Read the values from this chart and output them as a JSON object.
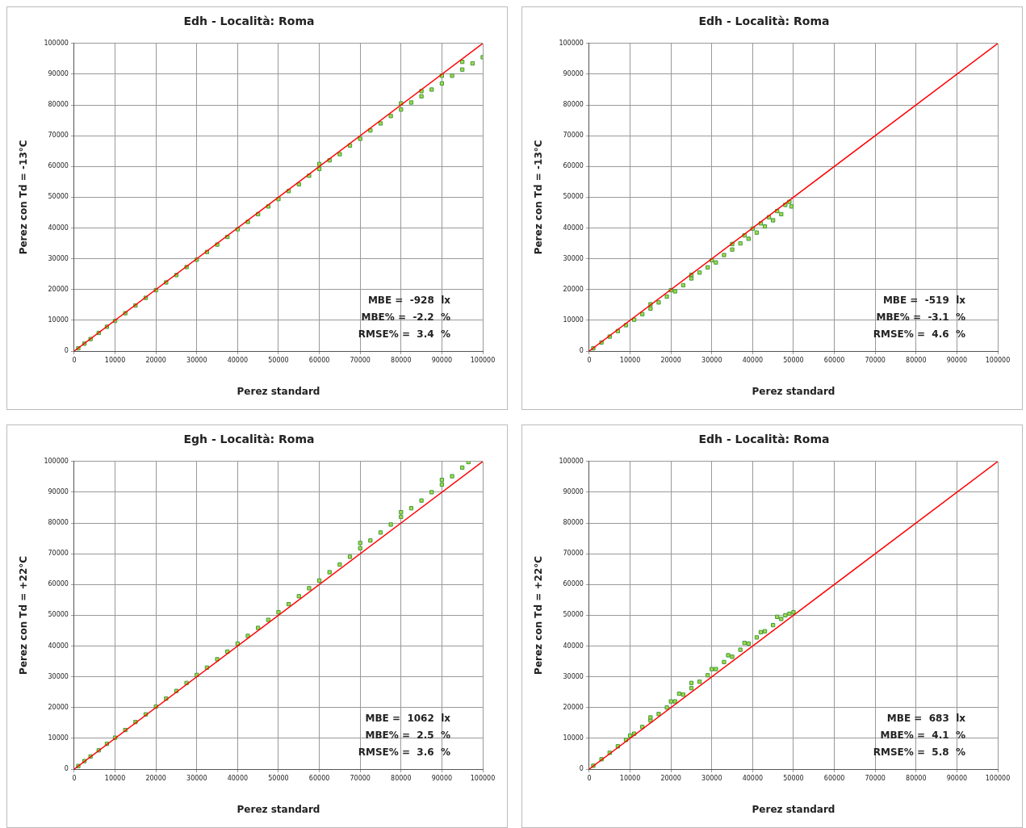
{
  "chart_data": [
    {
      "type": "scatter",
      "title": "Edh - Località: Roma",
      "xlabel": "Perez standard",
      "ylabel": "Perez con Td = -13°C",
      "xlim": [
        0,
        100000
      ],
      "ylim": [
        0,
        100000
      ],
      "xticks": [
        0,
        10000,
        20000,
        30000,
        40000,
        50000,
        60000,
        70000,
        80000,
        90000,
        100000
      ],
      "yticks": [
        0,
        10000,
        20000,
        30000,
        40000,
        50000,
        60000,
        70000,
        80000,
        90000,
        100000
      ],
      "grid": true,
      "legend": false,
      "marker": "square",
      "annotations": [
        "MBE =  -928  lx",
        "MBE% =  -2.2  %",
        "RMSE% =  3.4  %"
      ],
      "series": [
        {
          "color": "#a8d84a",
          "x": [
            1000,
            2500,
            4000,
            6000,
            8000,
            10000,
            12500,
            15000,
            17500,
            20000,
            22500,
            25000,
            27500,
            30000,
            32500,
            35000,
            37500,
            40000,
            42500,
            45000,
            47500,
            50000,
            52500,
            55000,
            57500,
            60000,
            62500,
            65000,
            67500,
            70000,
            72500,
            75000,
            77500,
            80000,
            82500,
            85000,
            87500,
            90000,
            92500,
            95000,
            97500,
            100000,
            80000,
            90000,
            95000,
            60000,
            85000
          ],
          "values": [
            900,
            2400,
            3900,
            5900,
            7900,
            9800,
            12300,
            14800,
            17300,
            19800,
            22300,
            24700,
            27300,
            29700,
            32200,
            34600,
            37100,
            39600,
            42000,
            44500,
            47000,
            49400,
            52000,
            54200,
            57000,
            59200,
            62000,
            64000,
            66800,
            69000,
            71700,
            74000,
            76400,
            78500,
            80800,
            82800,
            85000,
            87000,
            89500,
            91500,
            93500,
            95500,
            80500,
            89500,
            94000,
            60800,
            84500
          ]
        },
        {
          "type": "line",
          "color": "#ff0000",
          "marker": "none",
          "x": [
            0,
            100000
          ],
          "values": [
            0,
            100000
          ]
        }
      ]
    },
    {
      "type": "scatter",
      "title": "Edh - Località: Roma",
      "xlabel": "Perez standard",
      "ylabel": "Perez con Td = -13°C",
      "xlim": [
        0,
        100000
      ],
      "ylim": [
        0,
        100000
      ],
      "xticks": [
        0,
        10000,
        20000,
        30000,
        40000,
        50000,
        60000,
        70000,
        80000,
        90000,
        100000
      ],
      "yticks": [
        0,
        10000,
        20000,
        30000,
        40000,
        50000,
        60000,
        70000,
        80000,
        90000,
        100000
      ],
      "grid": true,
      "legend": false,
      "marker": "square",
      "annotations": [
        "MBE =  -519  lx",
        "MBE% =  -3.1  %",
        "RMSE% =  4.6  %"
      ],
      "series": [
        {
          "color": "#a8d84a",
          "x": [
            1000,
            3000,
            5000,
            7000,
            9000,
            11000,
            13000,
            15000,
            15000,
            17000,
            19000,
            20000,
            21000,
            23000,
            25000,
            25000,
            27000,
            29000,
            30000,
            31000,
            33000,
            35000,
            35000,
            37000,
            38000,
            39000,
            40000,
            41000,
            42000,
            43000,
            44000,
            45000,
            46000,
            47000,
            48000,
            49000,
            49500
          ],
          "values": [
            900,
            2800,
            4700,
            6500,
            8400,
            10200,
            12000,
            13800,
            15200,
            15800,
            17700,
            19800,
            19400,
            21400,
            23600,
            24800,
            25500,
            27200,
            29500,
            28800,
            31200,
            33000,
            34800,
            35000,
            37600,
            36500,
            39800,
            38500,
            41500,
            40500,
            43500,
            42500,
            45500,
            44500,
            47500,
            48500,
            47000
          ]
        },
        {
          "type": "line",
          "color": "#ff0000",
          "marker": "none",
          "x": [
            0,
            100000
          ],
          "values": [
            0,
            100000
          ]
        }
      ]
    },
    {
      "type": "scatter",
      "title": "Egh - Località: Roma",
      "xlabel": "Perez standard",
      "ylabel": "Perez con Td = +22°C",
      "xlim": [
        0,
        100000
      ],
      "ylim": [
        0,
        100000
      ],
      "xticks": [
        0,
        10000,
        20000,
        30000,
        40000,
        50000,
        60000,
        70000,
        80000,
        90000,
        100000
      ],
      "yticks": [
        0,
        10000,
        20000,
        30000,
        40000,
        50000,
        60000,
        70000,
        80000,
        90000,
        100000
      ],
      "grid": true,
      "legend": false,
      "marker": "square",
      "annotations": [
        "MBE =  1062  lx",
        "MBE% =  2.5  %",
        "RMSE% =  3.6  %"
      ],
      "series": [
        {
          "color": "#a8d84a",
          "x": [
            1000,
            2500,
            4000,
            6000,
            8000,
            10000,
            12500,
            15000,
            17500,
            20000,
            22500,
            25000,
            27500,
            30000,
            32500,
            35000,
            37500,
            40000,
            42500,
            45000,
            47500,
            50000,
            52500,
            55000,
            57500,
            60000,
            62500,
            65000,
            67500,
            70000,
            72500,
            75000,
            77500,
            80000,
            82500,
            85000,
            87500,
            90000,
            92500,
            95000,
            96500,
            70000,
            80000,
            90000
          ],
          "values": [
            1000,
            2600,
            4100,
            6100,
            8200,
            10200,
            12700,
            15300,
            17800,
            20300,
            22900,
            25400,
            28000,
            30600,
            33000,
            35700,
            38200,
            40800,
            43300,
            45900,
            48500,
            51000,
            53600,
            56200,
            58800,
            61300,
            64000,
            66500,
            69000,
            71800,
            74300,
            76900,
            79500,
            82000,
            84800,
            87300,
            90000,
            92500,
            95200,
            98000,
            99800,
            73500,
            83500,
            94000
          ]
        },
        {
          "type": "line",
          "color": "#ff0000",
          "marker": "none",
          "x": [
            0,
            100000
          ],
          "values": [
            0,
            100000
          ]
        }
      ]
    },
    {
      "type": "scatter",
      "title": "Edh - Località: Roma",
      "xlabel": "Perez standard",
      "ylabel": "Perez con Td = +22°C",
      "xlim": [
        0,
        100000
      ],
      "ylim": [
        0,
        100000
      ],
      "xticks": [
        0,
        10000,
        20000,
        30000,
        40000,
        50000,
        60000,
        70000,
        80000,
        90000,
        100000
      ],
      "yticks": [
        0,
        10000,
        20000,
        30000,
        40000,
        50000,
        60000,
        70000,
        80000,
        90000,
        100000
      ],
      "grid": true,
      "legend": false,
      "marker": "square",
      "annotations": [
        "MBE =  683  lx",
        "MBE% =  4.1  %",
        "RMSE% =  5.8  %"
      ],
      "series": [
        {
          "color": "#a8d84a",
          "x": [
            1000,
            3000,
            5000,
            7000,
            9000,
            10000,
            11000,
            13000,
            15000,
            15000,
            17000,
            19000,
            20000,
            21000,
            22000,
            23000,
            25000,
            25000,
            27000,
            29000,
            30000,
            31000,
            33000,
            34000,
            35000,
            37000,
            38000,
            39000,
            41000,
            42000,
            43000,
            45000,
            46000,
            47000,
            48000,
            49000,
            50000
          ],
          "values": [
            1100,
            3200,
            5300,
            7400,
            9500,
            10900,
            11500,
            13700,
            15800,
            16800,
            17900,
            20000,
            22000,
            22000,
            24500,
            24200,
            26300,
            28000,
            28400,
            30500,
            32500,
            32500,
            34800,
            37000,
            36500,
            38800,
            41000,
            40800,
            42800,
            44500,
            44800,
            46800,
            49500,
            48800,
            50000,
            50500,
            51000
          ]
        },
        {
          "type": "line",
          "color": "#ff0000",
          "marker": "none",
          "x": [
            0,
            100000
          ],
          "values": [
            0,
            100000
          ]
        }
      ]
    }
  ]
}
